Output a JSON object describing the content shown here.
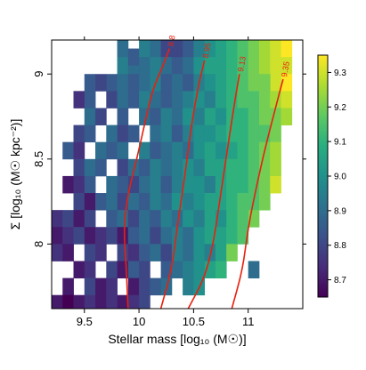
{
  "chart_data": {
    "type": "heatmap",
    "xlabel": "Stellar mass [log₁₀ (M☉)]",
    "ylabel": "Σ [log₁₀ (M☉ kpc⁻²)]",
    "xlim": [
      9.2,
      11.5
    ],
    "ylim": [
      7.62,
      9.2
    ],
    "x_ticks": [
      9.5,
      10,
      10.5,
      11
    ],
    "x_tick_labels": [
      "9.5",
      "10",
      "10.5",
      "11"
    ],
    "y_ticks": [
      8,
      8.5,
      9
    ],
    "y_tick_labels": [
      "8",
      "8.5",
      "9"
    ],
    "colorbar": {
      "range": [
        8.65,
        9.35
      ],
      "ticks": [
        8.7,
        8.8,
        8.9,
        9.0,
        9.1,
        9.2,
        9.3
      ],
      "tick_labels": [
        "8.7",
        "8.8",
        "8.9",
        "9.0",
        "9.1",
        "9.2",
        "9.3"
      ],
      "colormap": "viridis"
    },
    "grid": false,
    "cells": [
      [
        9.85,
        9.15,
        8.9
      ],
      [
        9.85,
        9.05,
        8.95
      ],
      [
        9.95,
        9.1,
        8.85
      ],
      [
        9.95,
        9.0,
        8.9
      ],
      [
        9.75,
        8.95,
        8.85
      ],
      [
        10.05,
        9.15,
        8.95
      ],
      [
        10.05,
        9.05,
        8.9
      ],
      [
        10.15,
        9.15,
        8.9
      ],
      [
        10.15,
        9.05,
        8.95
      ],
      [
        10.25,
        9.15,
        8.8
      ],
      [
        10.25,
        9.05,
        8.9
      ],
      [
        10.35,
        9.15,
        8.8
      ],
      [
        10.35,
        9.05,
        8.85
      ],
      [
        10.45,
        9.15,
        8.85
      ],
      [
        10.45,
        9.05,
        8.9
      ],
      [
        10.55,
        9.15,
        8.95
      ],
      [
        10.55,
        9.05,
        9.0
      ],
      [
        10.65,
        9.15,
        9.0
      ],
      [
        10.65,
        9.05,
        9.05
      ],
      [
        10.75,
        9.15,
        9.05
      ],
      [
        10.75,
        9.05,
        9.05
      ],
      [
        10.85,
        9.15,
        9.1
      ],
      [
        10.85,
        9.05,
        9.1
      ],
      [
        10.95,
        9.15,
        9.15
      ],
      [
        10.95,
        9.05,
        9.15
      ],
      [
        11.05,
        9.15,
        9.2
      ],
      [
        11.05,
        9.05,
        9.2
      ],
      [
        11.15,
        9.15,
        9.25
      ],
      [
        11.15,
        9.05,
        9.25
      ],
      [
        11.25,
        9.15,
        9.3
      ],
      [
        11.25,
        9.05,
        9.3
      ],
      [
        11.35,
        9.15,
        9.35
      ],
      [
        11.35,
        9.05,
        9.3
      ],
      [
        11.35,
        8.95,
        9.35
      ],
      [
        11.25,
        8.95,
        9.3
      ],
      [
        11.15,
        8.95,
        9.2
      ],
      [
        9.55,
        8.95,
        8.85
      ],
      [
        9.65,
        8.95,
        8.8
      ],
      [
        9.85,
        8.95,
        8.9
      ],
      [
        9.95,
        8.95,
        8.85
      ],
      [
        10.05,
        8.95,
        8.9
      ],
      [
        10.15,
        8.95,
        8.95
      ],
      [
        10.25,
        8.95,
        8.85
      ],
      [
        10.35,
        8.95,
        8.9
      ],
      [
        10.45,
        8.95,
        8.85
      ],
      [
        10.55,
        8.95,
        8.95
      ],
      [
        10.65,
        8.95,
        9.0
      ],
      [
        10.75,
        8.95,
        9.05
      ],
      [
        10.85,
        8.95,
        9.1
      ],
      [
        10.95,
        8.95,
        9.15
      ],
      [
        11.05,
        8.95,
        9.2
      ],
      [
        9.45,
        8.85,
        8.75
      ],
      [
        9.55,
        8.85,
        8.85
      ],
      [
        9.75,
        8.85,
        8.8
      ],
      [
        9.85,
        8.85,
        8.9
      ],
      [
        9.95,
        8.85,
        8.85
      ],
      [
        10.05,
        8.85,
        8.95
      ],
      [
        10.15,
        8.85,
        8.9
      ],
      [
        10.25,
        8.85,
        8.85
      ],
      [
        10.35,
        8.85,
        8.9
      ],
      [
        10.45,
        8.85,
        8.95
      ],
      [
        10.55,
        8.85,
        9.0
      ],
      [
        10.65,
        8.85,
        8.95
      ],
      [
        10.75,
        8.85,
        9.05
      ],
      [
        10.85,
        8.85,
        9.1
      ],
      [
        10.95,
        8.85,
        9.15
      ],
      [
        11.05,
        8.85,
        9.15
      ],
      [
        11.15,
        8.85,
        9.2
      ],
      [
        11.25,
        8.85,
        9.25
      ],
      [
        11.35,
        8.85,
        9.3
      ],
      [
        9.55,
        8.75,
        8.9
      ],
      [
        9.65,
        8.75,
        8.8
      ],
      [
        9.85,
        8.75,
        8.85
      ],
      [
        10.05,
        8.75,
        8.9
      ],
      [
        10.15,
        8.75,
        8.85
      ],
      [
        10.25,
        8.75,
        8.95
      ],
      [
        10.35,
        8.75,
        8.9
      ],
      [
        10.45,
        8.75,
        9.0
      ],
      [
        10.55,
        8.75,
        8.95
      ],
      [
        10.65,
        8.75,
        9.05
      ],
      [
        10.75,
        8.75,
        9.0
      ],
      [
        10.85,
        8.75,
        9.1
      ],
      [
        10.95,
        8.75,
        9.1
      ],
      [
        11.05,
        8.75,
        9.15
      ],
      [
        11.15,
        8.75,
        9.2
      ],
      [
        11.25,
        8.75,
        9.2
      ],
      [
        11.35,
        8.75,
        9.25
      ],
      [
        9.45,
        8.65,
        8.8
      ],
      [
        9.55,
        8.65,
        8.85
      ],
      [
        9.75,
        8.65,
        8.9
      ],
      [
        9.85,
        8.65,
        8.8
      ],
      [
        9.95,
        8.65,
        8.85
      ],
      [
        10.15,
        8.65,
        8.9
      ],
      [
        10.25,
        8.65,
        8.95
      ],
      [
        10.35,
        8.65,
        8.85
      ],
      [
        10.45,
        8.65,
        8.95
      ],
      [
        10.55,
        8.65,
        9.0
      ],
      [
        10.65,
        8.65,
        9.0
      ],
      [
        10.75,
        8.65,
        9.05
      ],
      [
        10.85,
        8.65,
        9.1
      ],
      [
        10.95,
        8.65,
        9.1
      ],
      [
        11.05,
        8.65,
        9.15
      ],
      [
        11.15,
        8.65,
        9.15
      ],
      [
        11.25,
        8.65,
        9.2
      ],
      [
        9.35,
        8.55,
        8.85
      ],
      [
        9.45,
        8.55,
        8.75
      ],
      [
        9.65,
        8.55,
        8.9
      ],
      [
        9.75,
        8.55,
        8.85
      ],
      [
        9.85,
        8.55,
        8.9
      ],
      [
        10.05,
        8.55,
        8.95
      ],
      [
        10.15,
        8.55,
        8.85
      ],
      [
        10.25,
        8.55,
        8.9
      ],
      [
        10.35,
        8.55,
        8.95
      ],
      [
        10.45,
        8.55,
        8.9
      ],
      [
        10.55,
        8.55,
        9.0
      ],
      [
        10.65,
        8.55,
        9.05
      ],
      [
        10.75,
        8.55,
        9.0
      ],
      [
        10.85,
        8.55,
        9.05
      ],
      [
        10.95,
        8.55,
        9.1
      ],
      [
        11.05,
        8.55,
        9.15
      ],
      [
        11.15,
        8.55,
        9.2
      ],
      [
        11.25,
        8.55,
        9.25
      ],
      [
        9.45,
        8.45,
        8.8
      ],
      [
        9.55,
        8.45,
        8.9
      ],
      [
        9.65,
        8.45,
        8.85
      ],
      [
        9.85,
        8.45,
        8.8
      ],
      [
        9.95,
        8.45,
        8.9
      ],
      [
        10.05,
        8.45,
        8.85
      ],
      [
        10.15,
        8.45,
        8.95
      ],
      [
        10.25,
        8.45,
        8.9
      ],
      [
        10.35,
        8.45,
        8.95
      ],
      [
        10.45,
        8.45,
        9.0
      ],
      [
        10.55,
        8.45,
        8.95
      ],
      [
        10.65,
        8.45,
        9.05
      ],
      [
        10.75,
        8.45,
        9.05
      ],
      [
        10.85,
        8.45,
        9.1
      ],
      [
        10.95,
        8.45,
        9.1
      ],
      [
        11.05,
        8.45,
        9.15
      ],
      [
        11.15,
        8.45,
        9.2
      ],
      [
        11.25,
        8.45,
        9.25
      ],
      [
        9.35,
        8.35,
        8.7
      ],
      [
        9.45,
        8.35,
        8.75
      ],
      [
        9.55,
        8.35,
        8.85
      ],
      [
        9.75,
        8.35,
        8.9
      ],
      [
        9.85,
        8.35,
        8.85
      ],
      [
        9.95,
        8.35,
        8.8
      ],
      [
        10.05,
        8.35,
        8.9
      ],
      [
        10.15,
        8.35,
        8.95
      ],
      [
        10.25,
        8.35,
        8.85
      ],
      [
        10.35,
        8.35,
        8.95
      ],
      [
        10.45,
        8.35,
        9.0
      ],
      [
        10.55,
        8.35,
        9.0
      ],
      [
        10.65,
        8.35,
        8.95
      ],
      [
        10.75,
        8.35,
        9.05
      ],
      [
        10.85,
        8.35,
        9.1
      ],
      [
        10.95,
        8.35,
        9.1
      ],
      [
        11.05,
        8.35,
        9.15
      ],
      [
        11.15,
        8.35,
        9.2
      ],
      [
        11.25,
        8.35,
        9.3
      ],
      [
        9.45,
        8.25,
        8.8
      ],
      [
        9.55,
        8.25,
        8.7
      ],
      [
        9.65,
        8.25,
        8.85
      ],
      [
        9.75,
        8.25,
        8.9
      ],
      [
        9.85,
        8.25,
        8.8
      ],
      [
        9.95,
        8.25,
        8.9
      ],
      [
        10.05,
        8.25,
        8.85
      ],
      [
        10.15,
        8.25,
        8.95
      ],
      [
        10.25,
        8.25,
        8.9
      ],
      [
        10.35,
        8.25,
        9.0
      ],
      [
        10.45,
        8.25,
        8.95
      ],
      [
        10.55,
        8.25,
        9.0
      ],
      [
        10.65,
        8.25,
        9.05
      ],
      [
        10.75,
        8.25,
        9.05
      ],
      [
        10.85,
        8.25,
        9.1
      ],
      [
        10.95,
        8.25,
        9.15
      ],
      [
        11.05,
        8.25,
        9.15
      ],
      [
        11.15,
        8.25,
        9.2
      ],
      [
        9.25,
        8.15,
        8.75
      ],
      [
        9.35,
        8.15,
        8.8
      ],
      [
        9.45,
        8.15,
        8.7
      ],
      [
        9.55,
        8.15,
        8.8
      ],
      [
        9.75,
        8.15,
        8.85
      ],
      [
        9.85,
        8.15,
        8.9
      ],
      [
        9.95,
        8.15,
        8.8
      ],
      [
        10.05,
        8.15,
        8.9
      ],
      [
        10.15,
        8.15,
        8.85
      ],
      [
        10.25,
        8.15,
        8.95
      ],
      [
        10.35,
        8.15,
        8.9
      ],
      [
        10.45,
        8.15,
        9.0
      ],
      [
        10.55,
        8.15,
        8.95
      ],
      [
        10.65,
        8.15,
        9.05
      ],
      [
        10.75,
        8.15,
        9.0
      ],
      [
        10.85,
        8.15,
        9.1
      ],
      [
        10.95,
        8.15,
        9.15
      ],
      [
        11.05,
        8.15,
        9.2
      ],
      [
        9.25,
        8.05,
        8.7
      ],
      [
        9.35,
        8.05,
        8.75
      ],
      [
        9.45,
        8.05,
        8.8
      ],
      [
        9.55,
        8.05,
        8.7
      ],
      [
        9.65,
        8.05,
        8.75
      ],
      [
        9.75,
        8.05,
        8.8
      ],
      [
        9.85,
        8.05,
        8.7
      ],
      [
        9.95,
        8.05,
        8.85
      ],
      [
        10.05,
        8.05,
        8.9
      ],
      [
        10.15,
        8.05,
        8.8
      ],
      [
        10.25,
        8.05,
        8.9
      ],
      [
        10.35,
        8.05,
        8.95
      ],
      [
        10.45,
        8.05,
        8.9
      ],
      [
        10.55,
        8.05,
        9.0
      ],
      [
        10.65,
        8.05,
        9.05
      ],
      [
        10.75,
        8.05,
        9.05
      ],
      [
        10.85,
        8.05,
        9.1
      ],
      [
        10.95,
        8.05,
        9.15
      ],
      [
        9.25,
        7.95,
        8.75
      ],
      [
        9.35,
        7.95,
        8.7
      ],
      [
        9.55,
        7.95,
        8.8
      ],
      [
        9.65,
        7.95,
        8.75
      ],
      [
        9.85,
        7.95,
        8.8
      ],
      [
        9.95,
        7.95,
        8.75
      ],
      [
        10.05,
        7.95,
        8.85
      ],
      [
        10.15,
        7.95,
        8.9
      ],
      [
        10.25,
        7.95,
        8.8
      ],
      [
        10.35,
        7.95,
        8.95
      ],
      [
        10.45,
        7.95,
        8.9
      ],
      [
        10.55,
        7.95,
        9.0
      ],
      [
        10.65,
        7.95,
        8.95
      ],
      [
        10.75,
        7.95,
        9.05
      ],
      [
        10.85,
        7.95,
        9.2
      ],
      [
        9.45,
        7.85,
        8.7
      ],
      [
        9.55,
        7.85,
        8.75
      ],
      [
        9.75,
        7.85,
        8.8
      ],
      [
        9.85,
        7.85,
        8.7
      ],
      [
        9.95,
        7.85,
        8.85
      ],
      [
        10.05,
        7.85,
        8.8
      ],
      [
        10.25,
        7.85,
        8.85
      ],
      [
        10.35,
        7.85,
        8.9
      ],
      [
        10.45,
        7.85,
        8.95
      ],
      [
        10.55,
        7.85,
        9.0
      ],
      [
        10.65,
        7.85,
        9.05
      ],
      [
        10.75,
        7.85,
        9.1
      ],
      [
        11.05,
        7.85,
        8.9
      ],
      [
        9.35,
        7.75,
        8.7
      ],
      [
        9.55,
        7.75,
        8.8
      ],
      [
        9.65,
        7.75,
        8.7
      ],
      [
        9.75,
        7.75,
        8.75
      ],
      [
        9.95,
        7.75,
        8.7
      ],
      [
        10.05,
        7.75,
        8.8
      ],
      [
        10.15,
        7.75,
        8.85
      ],
      [
        10.25,
        7.75,
        8.9
      ],
      [
        10.45,
        7.75,
        8.95
      ],
      [
        10.55,
        7.75,
        9.0
      ],
      [
        9.25,
        7.65,
        8.7
      ],
      [
        9.35,
        7.65,
        8.65
      ],
      [
        9.45,
        7.65,
        8.7
      ],
      [
        9.55,
        7.65,
        8.75
      ],
      [
        9.65,
        7.65,
        8.7
      ],
      [
        9.75,
        7.65,
        8.75
      ],
      [
        9.85,
        7.65,
        8.7
      ],
      [
        9.95,
        7.65,
        8.75
      ],
      [
        10.05,
        7.65,
        8.8
      ]
    ],
    "contours": [
      {
        "label": "8.8",
        "points": [
          [
            9.9,
            7.62
          ],
          [
            9.88,
            7.9
          ],
          [
            9.86,
            8.1
          ],
          [
            9.9,
            8.3
          ],
          [
            9.98,
            8.5
          ],
          [
            10.05,
            8.7
          ],
          [
            10.12,
            8.9
          ],
          [
            10.22,
            9.05
          ],
          [
            10.28,
            9.15
          ]
        ]
      },
      {
        "label": "8.95",
        "points": [
          [
            10.2,
            7.62
          ],
          [
            10.3,
            7.85
          ],
          [
            10.35,
            8.1
          ],
          [
            10.42,
            8.4
          ],
          [
            10.48,
            8.7
          ],
          [
            10.55,
            8.95
          ],
          [
            10.6,
            9.08
          ]
        ]
      },
      {
        "label": "9.13",
        "points": [
          [
            10.45,
            7.62
          ],
          [
            10.6,
            7.8
          ],
          [
            10.68,
            8.0
          ],
          [
            10.75,
            8.3
          ],
          [
            10.82,
            8.6
          ],
          [
            10.88,
            8.85
          ],
          [
            10.92,
            9.0
          ]
        ]
      },
      {
        "label": "9.35",
        "points": [
          [
            10.85,
            7.62
          ],
          [
            10.95,
            7.85
          ],
          [
            11.0,
            8.1
          ],
          [
            11.08,
            8.35
          ],
          [
            11.15,
            8.55
          ],
          [
            11.25,
            8.8
          ],
          [
            11.32,
            8.97
          ]
        ]
      }
    ],
    "contour_color": "#e8200e"
  }
}
